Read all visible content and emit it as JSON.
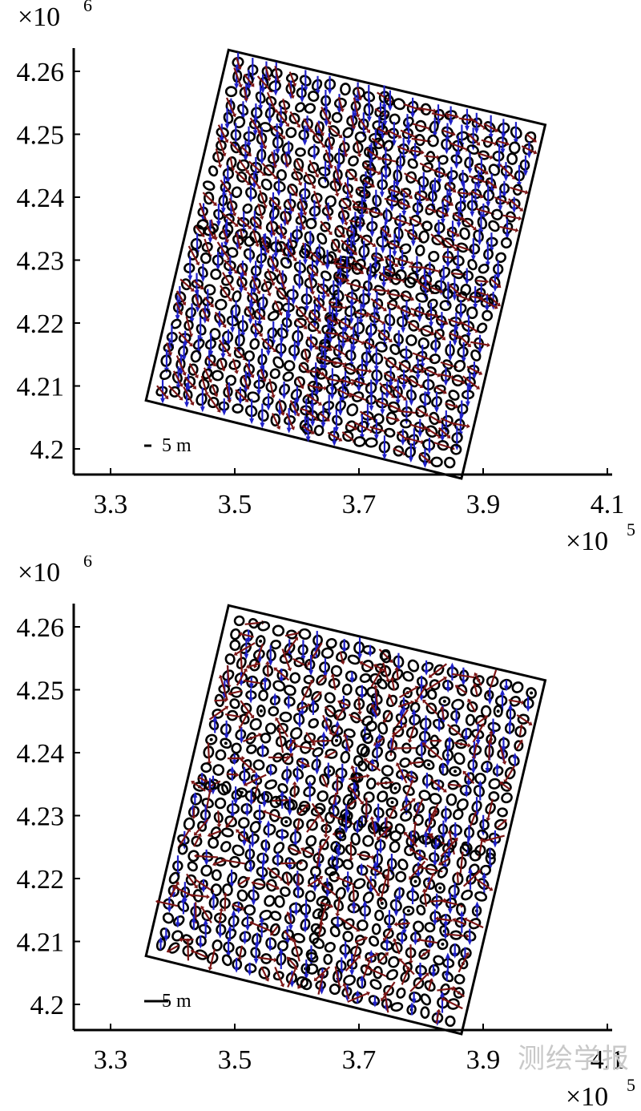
{
  "chart_data": [
    {
      "type": "scatter",
      "title": "",
      "xlabel": "",
      "ylabel": "",
      "x_multiplier": "×10",
      "x_multiplier_exp": "5",
      "y_multiplier": "×10",
      "y_multiplier_exp": "6",
      "xlim": [
        3.25,
        4.12
      ],
      "ylim": [
        4.196,
        4.264
      ],
      "xticks": [
        "3.3",
        "3.5",
        "3.7",
        "3.9",
        "4.1"
      ],
      "yticks": [
        "4.2",
        "4.21",
        "4.22",
        "4.23",
        "4.24",
        "4.25",
        "4.26"
      ],
      "boundary": [
        [
          3.49,
          4.2634
        ],
        [
          4.0,
          4.2515
        ],
        [
          3.865,
          4.1953
        ],
        [
          3.357,
          4.2077
        ]
      ],
      "scale_bar_label": "5 m",
      "scale_bar_length": 5,
      "marker_color": "#000000",
      "series": [
        {
          "color": "#1f20c8",
          "dominant_direction": "south"
        },
        {
          "color": "#7a1414",
          "dominant_direction": "southeast"
        }
      ]
    },
    {
      "type": "scatter",
      "title": "",
      "xlabel": "",
      "ylabel": "",
      "x_multiplier": "×10",
      "x_multiplier_exp": "5",
      "y_multiplier": "×10",
      "y_multiplier_exp": "6",
      "xlim": [
        3.25,
        4.12
      ],
      "ylim": [
        4.196,
        4.264
      ],
      "xticks": [
        "3.3",
        "3.5",
        "3.7",
        "3.9",
        "4.1"
      ],
      "yticks": [
        "4.2",
        "4.21",
        "4.22",
        "4.23",
        "4.24",
        "4.25",
        "4.26"
      ],
      "boundary": [
        [
          3.49,
          4.2634
        ],
        [
          4.0,
          4.2515
        ],
        [
          3.865,
          4.1953
        ],
        [
          3.357,
          4.2077
        ]
      ],
      "scale_bar_label": "5 m",
      "scale_bar_length": 5,
      "marker_color": "#000000",
      "series": [
        {
          "color": "#1f20c8",
          "dominant_direction": "south"
        },
        {
          "color": "#7a1414",
          "dominant_direction": "mixed"
        }
      ]
    }
  ],
  "watermark": "测绘学报"
}
